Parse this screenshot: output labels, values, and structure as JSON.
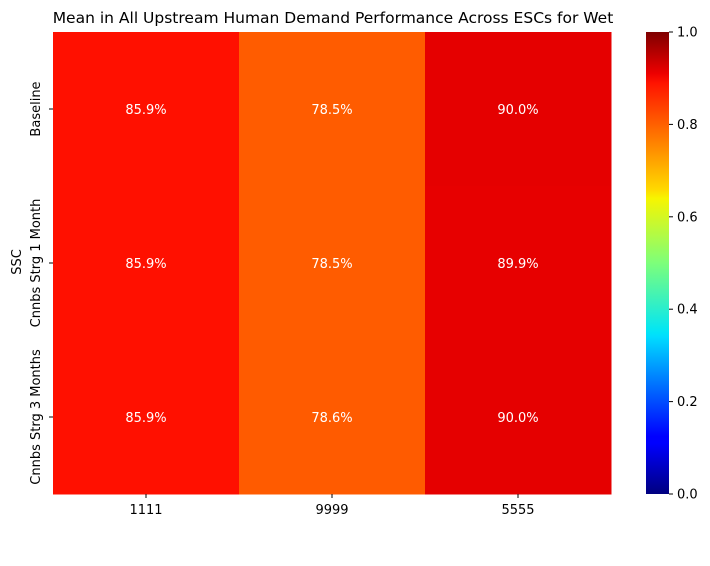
{
  "chart_data": {
    "type": "heatmap",
    "title": "Mean in All Upstream Human Demand Performance Across ESCs for Wet",
    "ylabel": "SSC",
    "xlabel": "",
    "x_categories": [
      "1111",
      "9999",
      "5555"
    ],
    "y_categories": [
      "Baseline",
      "Cnnbs Strg 1 Month",
      "Cnnbs Strg 3 Months"
    ],
    "values": [
      [
        0.859,
        0.785,
        0.9
      ],
      [
        0.859,
        0.785,
        0.899
      ],
      [
        0.859,
        0.786,
        0.9
      ]
    ],
    "cell_labels": [
      [
        "85.9%",
        "78.5%",
        "90.0%"
      ],
      [
        "85.9%",
        "78.5%",
        "89.9%"
      ],
      [
        "85.9%",
        "78.6%",
        "90.0%"
      ]
    ],
    "colormap": "jet",
    "colorbar": {
      "range": [
        0,
        1
      ],
      "ticks": [
        0.0,
        0.2,
        0.4,
        0.6,
        0.8,
        1.0
      ],
      "tick_labels": [
        "0.0",
        "0.2",
        "0.4",
        "0.6",
        "0.8",
        "1.0"
      ]
    }
  }
}
